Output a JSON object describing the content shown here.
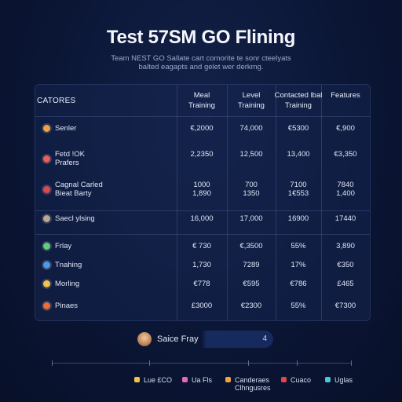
{
  "title": "Test 57SM GO Flining",
  "subtitle": [
    "Team NEST GO Sallate cart comorite te sonr cteelyats",
    "balted eagapts and gelet wer derkmg."
  ],
  "table": {
    "category_header": "CATORES",
    "columns": [
      [
        "Meal",
        "Training"
      ],
      [
        "Level",
        "Training"
      ],
      [
        "Contacted lbal",
        "Training"
      ],
      [
        "",
        "Features"
      ]
    ],
    "rows": [
      {
        "label": [
          "Senler"
        ],
        "color": "#f0a341",
        "values": [
          [
            "€,2000"
          ],
          [
            "74,000"
          ],
          [
            "€5300"
          ],
          [
            "€,900"
          ]
        ]
      },
      {
        "label": [
          "Fetd !OK",
          "Prafers"
        ],
        "color": "#ef5a5a",
        "values": [
          [
            "2,2350"
          ],
          [
            "12,500"
          ],
          [
            "13,400"
          ],
          [
            "€3,350"
          ]
        ]
      },
      {
        "label": [
          "Cagnal Carled",
          "Bieat Barty"
        ],
        "color": "#e0474c",
        "values": [
          [
            "1000",
            "1,890"
          ],
          [
            "700",
            "1350"
          ],
          [
            "7100",
            "1€553"
          ],
          [
            "7840",
            "1,400"
          ]
        ]
      },
      {
        "label": [
          "Saecl ylsing"
        ],
        "color": "#b9a88b",
        "values": [
          [
            "16,000"
          ],
          [
            "17,000"
          ],
          [
            "16900"
          ],
          [
            "17440"
          ]
        ]
      },
      {
        "label": [
          "Frlay"
        ],
        "color": "#5fcf7a",
        "values": [
          [
            "€ 730"
          ],
          [
            "€,3500"
          ],
          [
            "55%"
          ],
          [
            "3,890"
          ]
        ]
      },
      {
        "label": [
          "Tnahing"
        ],
        "color": "#4a9be8",
        "values": [
          [
            "1,730"
          ],
          [
            "7289"
          ],
          [
            "17%"
          ],
          [
            "€350"
          ]
        ]
      },
      {
        "label": [
          "Morling"
        ],
        "color": "#f3c04a",
        "values": [
          [
            "€778"
          ],
          [
            "€595"
          ],
          [
            "€786"
          ],
          [
            "£465"
          ]
        ]
      },
      {
        "label": [
          "Pinaes"
        ],
        "color": "#f06a3a",
        "values": [
          [
            "£3000"
          ],
          [
            "€2300"
          ],
          [
            "55%"
          ],
          [
            "€7300"
          ]
        ]
      }
    ]
  },
  "search": {
    "label": "Saice Fray",
    "count": "4"
  },
  "legend": [
    {
      "label": [
        "Lue £CO"
      ],
      "color": "#f3c04a"
    },
    {
      "label": [
        "Ua Fls"
      ],
      "color": "#e36bb4"
    },
    {
      "label": [
        "Canderaes",
        "Clhngusres"
      ],
      "color": "#f0a341"
    },
    {
      "label": [
        "Cuaco"
      ],
      "color": "#e0474c"
    },
    {
      "label": [
        "Uglas"
      ],
      "color": "#49c9d6"
    }
  ]
}
